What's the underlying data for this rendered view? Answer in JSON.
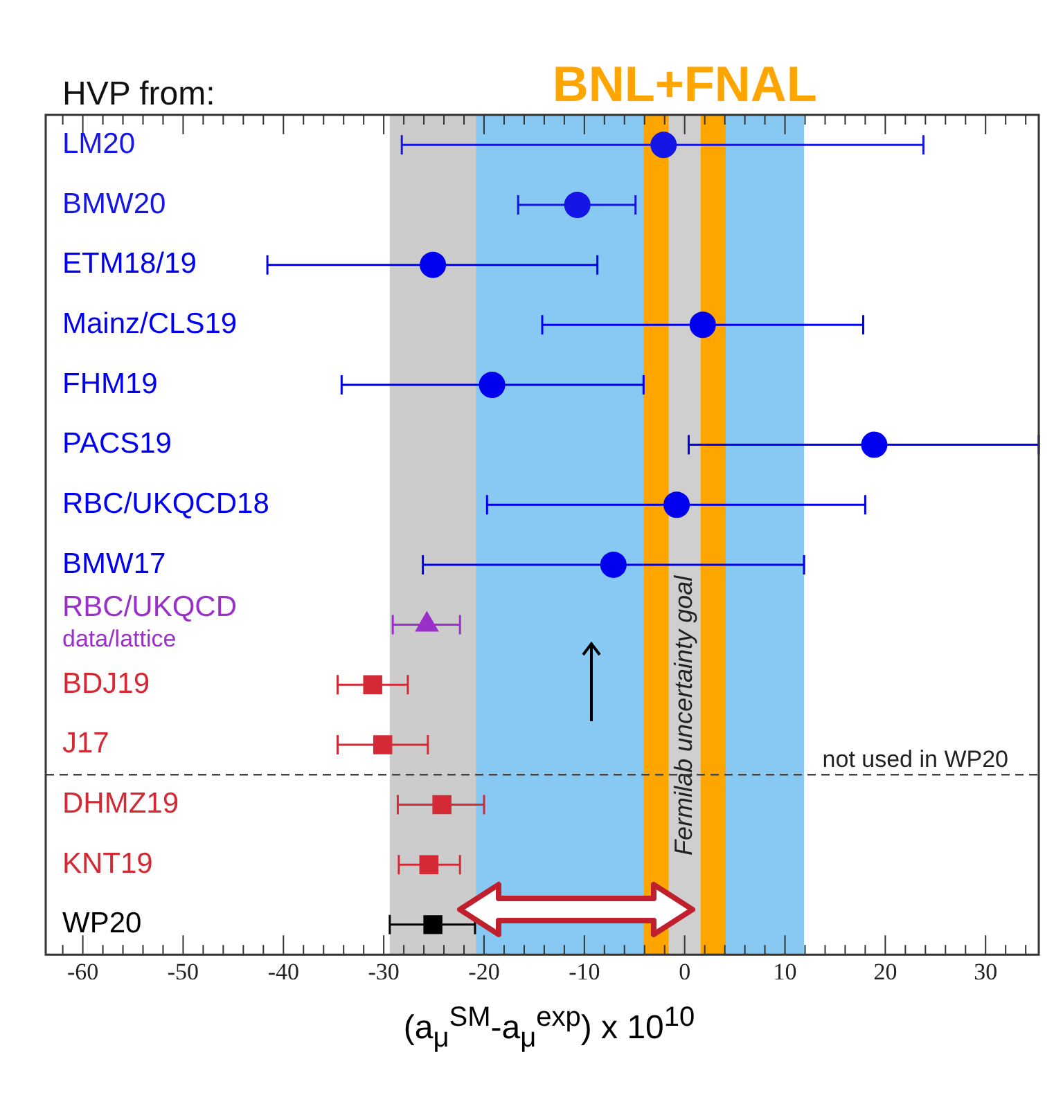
{
  "chart_data": {
    "type": "scatter",
    "title": "HVP from:",
    "xlabel": "(a$_{μ}$$^{SM}$-a$_{μ}$$^{exp}$) x 10$^{10}$",
    "orientation": "horizontal",
    "categories": [
      "LM20",
      "BMW20",
      "ETM18/19",
      "Mainz/CLS19",
      "FHM19",
      "PACS19",
      "RBC/UKQCD18",
      "BMW17",
      "RBC/UKQCD data/lattice",
      "BDJ19",
      "J17",
      "DHMZ19",
      "KNT19",
      "WP20"
    ],
    "xlim": [
      -63.7,
      35.3
    ],
    "xticks": [
      {
        "value": -62,
        "label": null
      },
      -60,
      {
        "value": -58,
        "label": null
      },
      {
        "value": -56,
        "label": null
      },
      {
        "value": -54,
        "label": null
      },
      {
        "value": -52,
        "label": null
      },
      -50,
      {
        "value": -48,
        "label": null
      },
      {
        "value": -46,
        "label": null
      },
      {
        "value": -44,
        "label": null
      },
      {
        "value": -42,
        "label": null
      },
      -40,
      {
        "value": -38,
        "label": null
      },
      {
        "value": -36,
        "label": null
      },
      {
        "value": -34,
        "label": null
      },
      {
        "value": -32,
        "label": null
      },
      -30,
      {
        "value": -28,
        "label": null
      },
      {
        "value": -26,
        "label": null
      },
      {
        "value": -24,
        "label": null
      },
      {
        "value": -22,
        "label": null
      },
      -20,
      {
        "value": -18,
        "label": null
      },
      {
        "value": -16,
        "label": null
      },
      {
        "value": -14,
        "label": null
      },
      {
        "value": -12,
        "label": null
      },
      -10,
      {
        "value": -8,
        "label": null
      },
      {
        "value": -6,
        "label": null
      },
      {
        "value": -4,
        "label": null
      },
      {
        "value": -2,
        "label": null
      },
      0,
      {
        "value": 2,
        "label": null
      },
      {
        "value": 4,
        "label": null
      },
      {
        "value": 6,
        "label": null
      },
      {
        "value": 8,
        "label": null
      },
      10,
      {
        "value": 12,
        "label": null
      },
      {
        "value": 14,
        "label": null
      },
      {
        "value": 16,
        "label": null
      },
      {
        "value": 18,
        "label": null
      },
      20,
      {
        "value": 22,
        "label": null
      },
      {
        "value": 24,
        "label": null
      },
      {
        "value": 26,
        "label": null
      },
      {
        "value": 28,
        "label": null
      },
      30,
      {
        "value": 32,
        "label": null
      },
      {
        "value": 34,
        "label": null
      }
    ],
    "series": [
      {
        "color": "#1515e6",
        "marker": "circle",
        "values": [
          -2.1,
          -10.7,
          null,
          null,
          null,
          null,
          null,
          null,
          null,
          null,
          null,
          null,
          null,
          null
        ],
        "errors": [
          [
            -28.2,
            23.8
          ],
          [
            -16.6,
            -4.9
          ],
          null,
          null,
          null,
          null,
          null,
          null,
          null,
          null,
          null,
          null,
          null,
          null
        ]
      },
      {
        "color": "#0000ee",
        "marker": "circle",
        "values": [
          null,
          null,
          -25.1,
          1.8,
          -19.2,
          18.9,
          -0.8,
          -7.1,
          null,
          null,
          null,
          null,
          null,
          null
        ],
        "errors": [
          null,
          null,
          [
            -41.6,
            -8.7
          ],
          [
            -14.2,
            17.8
          ],
          [
            -34.2,
            -4.1
          ],
          [
            0.4,
            35.3
          ],
          [
            -19.7,
            18.0
          ],
          [
            -26.1,
            11.9
          ],
          null,
          null,
          null,
          null,
          null,
          null
        ]
      },
      {
        "color": "#9b2fc9",
        "marker": "triangle",
        "values": [
          null,
          null,
          null,
          null,
          null,
          null,
          null,
          null,
          -25.7,
          null,
          null,
          null,
          null,
          null
        ],
        "errors": [
          null,
          null,
          null,
          null,
          null,
          null,
          null,
          null,
          [
            -29.1,
            -22.4
          ],
          null,
          null,
          null,
          null,
          null
        ]
      },
      {
        "color": "#d42a36",
        "marker": "square",
        "values": [
          null,
          null,
          null,
          null,
          null,
          null,
          null,
          null,
          null,
          -31.1,
          -30.1,
          -24.2,
          -25.5,
          null
        ],
        "errors": [
          null,
          null,
          null,
          null,
          null,
          null,
          null,
          null,
          null,
          [
            -34.6,
            -27.6
          ],
          [
            -34.6,
            -25.6
          ],
          [
            -28.6,
            -20.0
          ],
          [
            -28.5,
            -22.4
          ],
          null
        ]
      },
      {
        "color": "#000000",
        "marker": "square",
        "values": [
          null,
          null,
          null,
          null,
          null,
          null,
          null,
          null,
          null,
          null,
          null,
          null,
          null,
          -25.1
        ],
        "errors": [
          null,
          null,
          null,
          null,
          null,
          null,
          null,
          null,
          null,
          null,
          null,
          null,
          null,
          [
            -29.4,
            -20.9
          ]
        ]
      }
    ],
    "bands": [
      {
        "axis": "x",
        "from": -25.0,
        "to": 11.9,
        "color": "#87c9f3"
      },
      {
        "axis": "x",
        "from": -29.4,
        "to": -20.8,
        "color": "#cccccc"
      },
      {
        "axis": "x",
        "from": -4.1,
        "to": 4.1,
        "color": "#ffa500",
        "label": "BNL+FNAL"
      },
      {
        "axis": "x",
        "from": -1.6,
        "to": 1.6,
        "color": "#cfcfcf",
        "label": "Fermilab uncertainty goal"
      }
    ],
    "ref_lines": [
      {
        "axis": "y",
        "value": "J17",
        "label": "not used in WP20",
        "line_style": "dashed",
        "color": "#444444"
      }
    ],
    "grid": false,
    "legend": false
  }
}
